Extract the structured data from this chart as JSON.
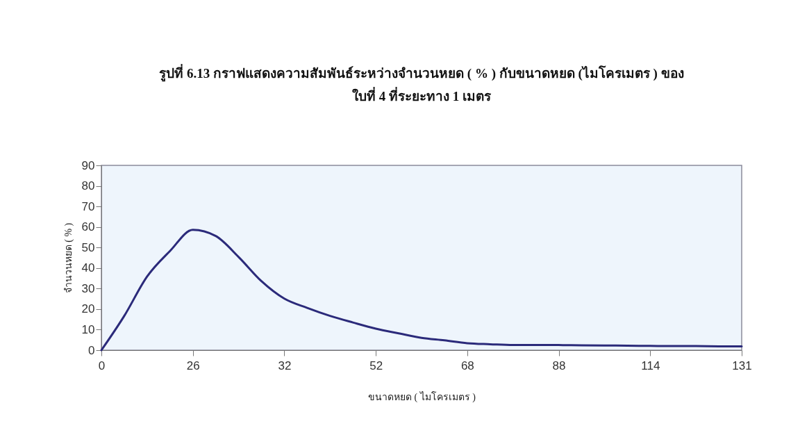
{
  "chart_data": {
    "type": "line",
    "title": "รูปที่ 6.13 กราฟแสดงความสัมพันธ์ระหว่างจำนวนหยด ( % ) กับขนาดหยด (ไมโครเมตร ) ของ\nใบที่ 4 ที่ระยะทาง 1 เมตร",
    "xlabel": "ขนาดหยด ( ไมโครเมตร )",
    "ylabel": "จำนวนหยด ( % )",
    "categories": [
      "0",
      null,
      null,
      null,
      "26",
      null,
      null,
      null,
      "32",
      null,
      null,
      null,
      "52",
      null,
      null,
      null,
      "68",
      null,
      null,
      null,
      "88",
      null,
      null,
      null,
      "114",
      null,
      null,
      null,
      "131"
    ],
    "series": [
      {
        "color": "#2b2a7a",
        "values": [
          0,
          16.7,
          35.9,
          48.3,
          58.6,
          55.6,
          45.4,
          33.6,
          25.1,
          20.6,
          16.7,
          13.5,
          10.5,
          8.2,
          6,
          4.8,
          3.4,
          2.9,
          2.5,
          2.5,
          2.5,
          2.4,
          2.3,
          2.2,
          2.1,
          2,
          2,
          1.9,
          1.9
        ]
      }
    ],
    "ylim": [
      0,
      90
    ],
    "yticks": [
      0,
      10,
      20,
      30,
      40,
      50,
      60,
      70,
      80,
      90
    ],
    "grid": false,
    "legend": false,
    "marker": "none",
    "line_style": "solid"
  }
}
